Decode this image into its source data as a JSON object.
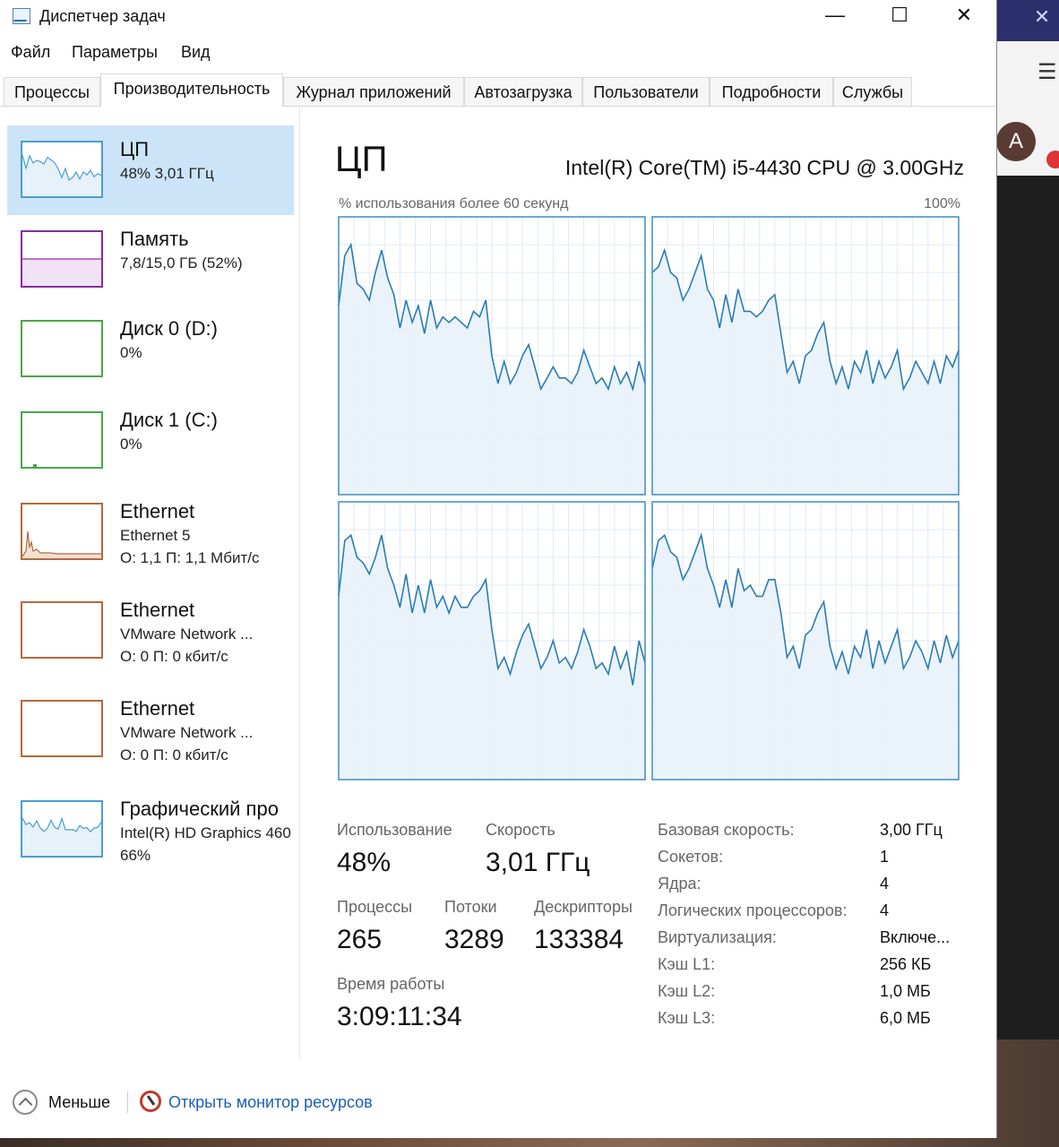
{
  "window": {
    "title": "Диспетчер задач",
    "minimize": "—",
    "maximize": "☐",
    "close": "✕"
  },
  "background": {
    "avatar_letter": "A",
    "close": "✕",
    "menu": "☰"
  },
  "menu": [
    "Файл",
    "Параметры",
    "Вид"
  ],
  "tabs": [
    "Процессы",
    "Производительность",
    "Журнал приложений",
    "Автозагрузка",
    "Пользователи",
    "Подробности",
    "Службы"
  ],
  "active_tab": "Производительность",
  "sidebar": [
    {
      "name": "ЦП",
      "lines": [
        "48% 3,01 ГГц"
      ],
      "color": "#4a9ece",
      "active": true
    },
    {
      "name": "Память",
      "lines": [
        "7,8/15,0 ГБ (52%)"
      ],
      "color": "#8b2b9e"
    },
    {
      "name": "Диск 0 (D:)",
      "lines": [
        "0%"
      ],
      "color": "#4ca64c"
    },
    {
      "name": "Диск 1 (C:)",
      "lines": [
        "0%"
      ],
      "color": "#4ca64c"
    },
    {
      "name": "Ethernet",
      "lines": [
        "Ethernet 5",
        "О: 1,1 П: 1,1 Мбит/с"
      ],
      "color": "#b5693b"
    },
    {
      "name": "Ethernet",
      "lines": [
        "VMware Network ...",
        "О: 0 П: 0 кбит/с"
      ],
      "color": "#b5693b"
    },
    {
      "name": "Ethernet",
      "lines": [
        "VMware Network ...",
        "О: 0 П: 0 кбит/с"
      ],
      "color": "#b5693b"
    },
    {
      "name": "Графический про",
      "lines": [
        "Intel(R) HD Graphics 460",
        "66%"
      ],
      "color": "#4a9ece"
    }
  ],
  "main": {
    "title": "ЦП",
    "cpu_name": "Intel(R) Core(TM) i5-4430 CPU @ 3.00GHz",
    "usage_label": "% использования более 60 секунд",
    "max_label": "100%",
    "line_color": "#2b7cb3",
    "fill_color": "#e8f2fa",
    "cores": [
      [
        68,
        86,
        90,
        76,
        74,
        70,
        80,
        88,
        78,
        72,
        60,
        70,
        62,
        68,
        58,
        70,
        60,
        64,
        62,
        64,
        62,
        60,
        66,
        64,
        70,
        50,
        40,
        48,
        40,
        44,
        50,
        54,
        46,
        38,
        42,
        46,
        42,
        42,
        40,
        44,
        52,
        46,
        40,
        42,
        38,
        46,
        40,
        44,
        38,
        48,
        40
      ],
      [
        80,
        82,
        88,
        80,
        78,
        70,
        74,
        80,
        86,
        74,
        70,
        60,
        72,
        62,
        74,
        66,
        66,
        64,
        66,
        70,
        72,
        58,
        44,
        48,
        40,
        50,
        52,
        58,
        62,
        48,
        40,
        46,
        38,
        48,
        44,
        52,
        40,
        48,
        42,
        46,
        52,
        38,
        42,
        48,
        44,
        40,
        48,
        40,
        50,
        46,
        52
      ],
      [
        66,
        86,
        88,
        80,
        78,
        74,
        80,
        88,
        76,
        70,
        62,
        74,
        60,
        70,
        60,
        72,
        62,
        66,
        60,
        66,
        62,
        62,
        66,
        68,
        72,
        54,
        40,
        44,
        38,
        46,
        52,
        56,
        48,
        40,
        44,
        50,
        42,
        44,
        40,
        46,
        54,
        48,
        40,
        42,
        38,
        48,
        40,
        46,
        34,
        50,
        42
      ],
      [
        76,
        86,
        88,
        82,
        80,
        72,
        76,
        82,
        88,
        76,
        70,
        62,
        72,
        62,
        76,
        68,
        70,
        66,
        66,
        72,
        72,
        60,
        44,
        48,
        40,
        52,
        54,
        60,
        64,
        48,
        40,
        46,
        38,
        48,
        44,
        54,
        40,
        50,
        42,
        48,
        54,
        40,
        44,
        50,
        46,
        40,
        50,
        42,
        52,
        44,
        50
      ]
    ],
    "stats": [
      {
        "label": "Использование",
        "value": "48%"
      },
      {
        "label": "Скорость",
        "value": "3,01 ГГц"
      },
      {
        "label": "Процессы",
        "value": "265"
      },
      {
        "label": "Потоки",
        "value": "3289"
      },
      {
        "label": "Дескрипторы",
        "value": "133384"
      },
      {
        "label": "Время работы",
        "value": "3:09:11:34"
      }
    ],
    "properties": [
      {
        "label": "Базовая скорость:",
        "value": "3,00 ГГц"
      },
      {
        "label": "Сокетов:",
        "value": "1"
      },
      {
        "label": "Ядра:",
        "value": "4"
      },
      {
        "label": "Логических процессоров:",
        "value": "4"
      },
      {
        "label": "Виртуализация:",
        "value": "Включе..."
      },
      {
        "label": "Кэш L1:",
        "value": "256 КБ"
      },
      {
        "label": "Кэш L2:",
        "value": "1,0 МБ"
      },
      {
        "label": "Кэш L3:",
        "value": "6,0 МБ"
      }
    ]
  },
  "footer": {
    "fewer": "Меньше",
    "monitor_link": "Открыть монитор ресурсов"
  }
}
